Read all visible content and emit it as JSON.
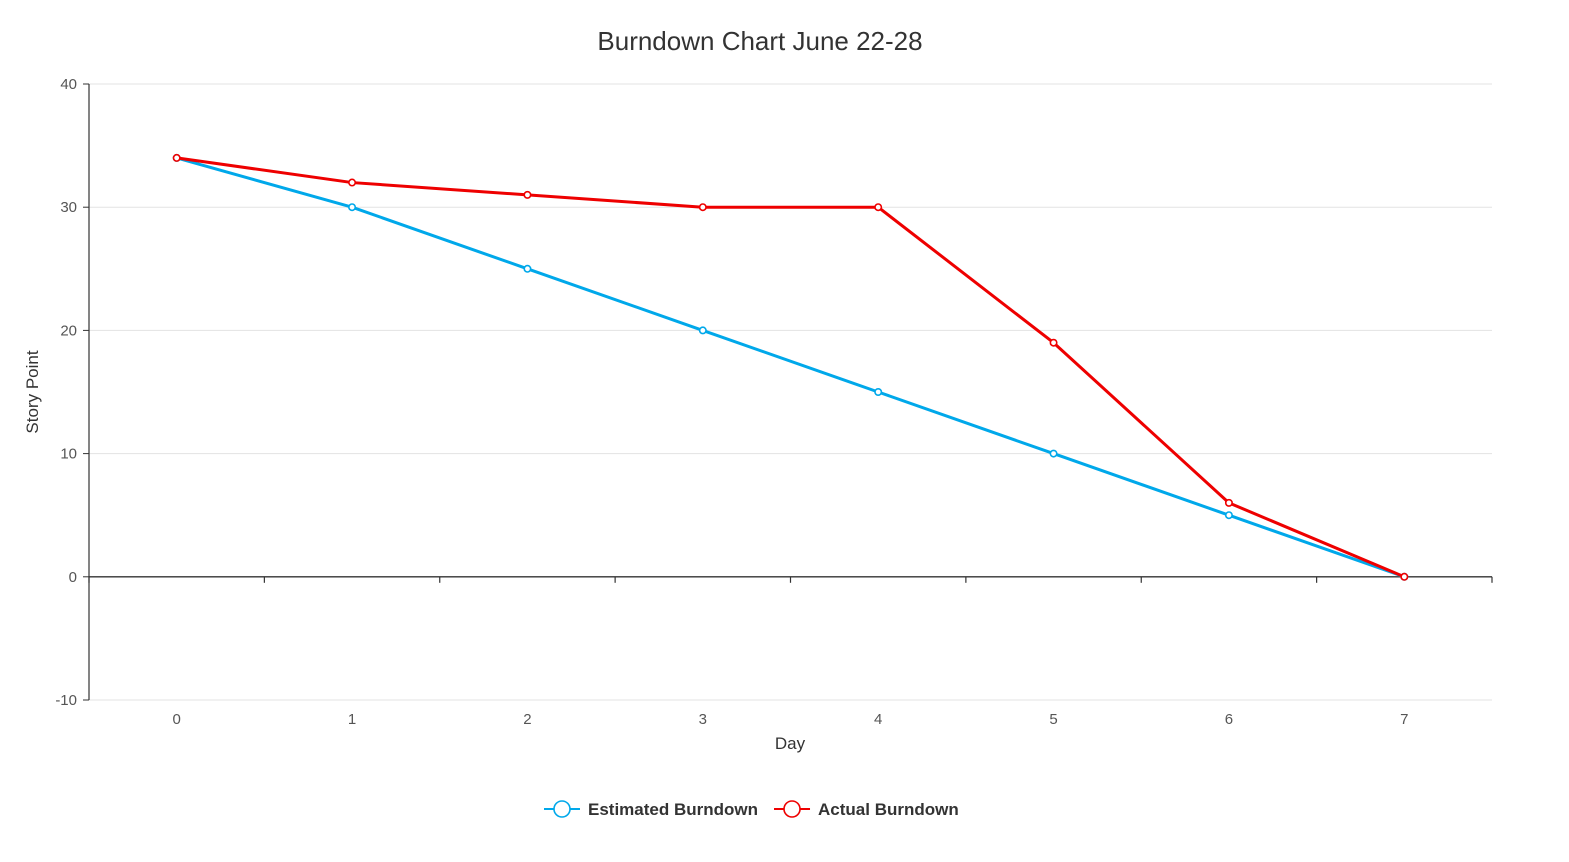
{
  "chart_data": {
    "type": "line",
    "title": "Burndown Chart June 22-28",
    "xlabel": "Day",
    "ylabel": "Story Point",
    "categories": [
      "0",
      "1",
      "2",
      "3",
      "4",
      "5",
      "6",
      "7"
    ],
    "ylim": [
      -10,
      40
    ],
    "yticks": [
      -10,
      0,
      10,
      20,
      30,
      40
    ],
    "grid": true,
    "legend_position": "bottom",
    "series": [
      {
        "name": "Estimated Burndown",
        "color": "#00a8ea",
        "values": [
          34,
          30,
          25,
          20,
          15,
          10,
          5,
          0
        ]
      },
      {
        "name": "Actual Burndown",
        "color": "#ee0000",
        "values": [
          34,
          32,
          31,
          30,
          30,
          19,
          6,
          0
        ]
      }
    ]
  }
}
